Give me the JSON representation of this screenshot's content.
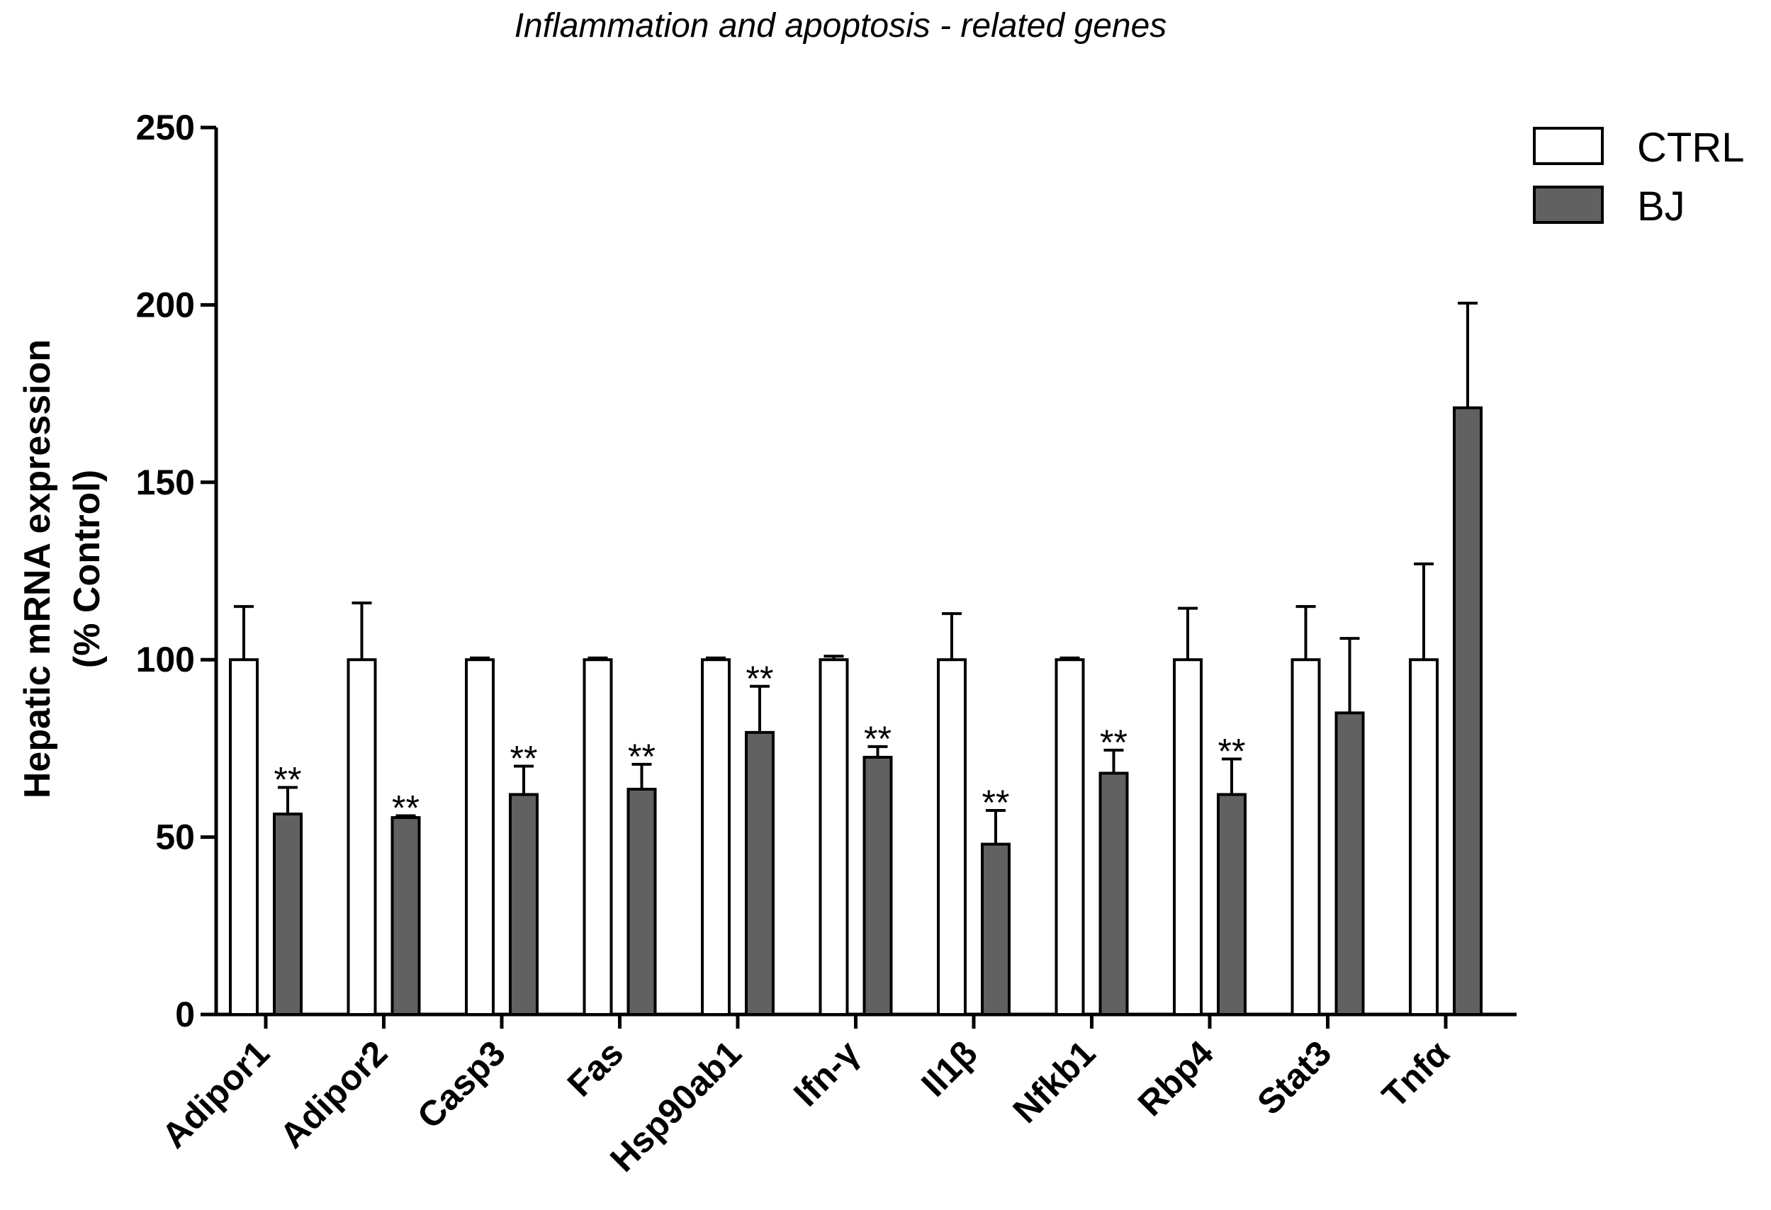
{
  "chart_data": {
    "type": "bar",
    "title": "Inflammation and apoptosis - related genes",
    "xlabel": "",
    "ylabel_line1": "Hepatic mRNA expression",
    "ylabel_line2": "(% Control)",
    "ylim": [
      0,
      250
    ],
    "yticks": [
      0,
      50,
      100,
      150,
      200,
      250
    ],
    "categories": [
      "Adipor1",
      "Adipor2",
      "Casp3",
      "Fas",
      "Hsp90ab1",
      "Ifn-γ",
      "Il1β",
      "Nfkb1",
      "Rbp4",
      "Stat3",
      "Tnfα"
    ],
    "series": [
      {
        "name": "CTRL",
        "color": "#ffffff",
        "values": [
          100,
          100,
          100,
          100,
          100,
          100,
          100,
          100,
          100,
          100,
          100
        ],
        "errors": [
          15,
          16,
          0.5,
          0.5,
          0.5,
          1,
          13,
          0.5,
          14.5,
          15,
          27
        ]
      },
      {
        "name": "BJ",
        "color": "#616161",
        "values": [
          56.5,
          55.5,
          62,
          63.5,
          79.5,
          72.5,
          48,
          68,
          62,
          85,
          171
        ],
        "errors": [
          7.5,
          0.5,
          8,
          7,
          13,
          3,
          9.5,
          6.5,
          10,
          21,
          29.5
        ]
      }
    ],
    "significance": [
      "**",
      "**",
      "**",
      "**",
      "**",
      "**",
      "**",
      "**",
      "**",
      "",
      ""
    ],
    "legend": [
      "CTRL",
      "BJ"
    ],
    "legend_position": "top-right"
  }
}
